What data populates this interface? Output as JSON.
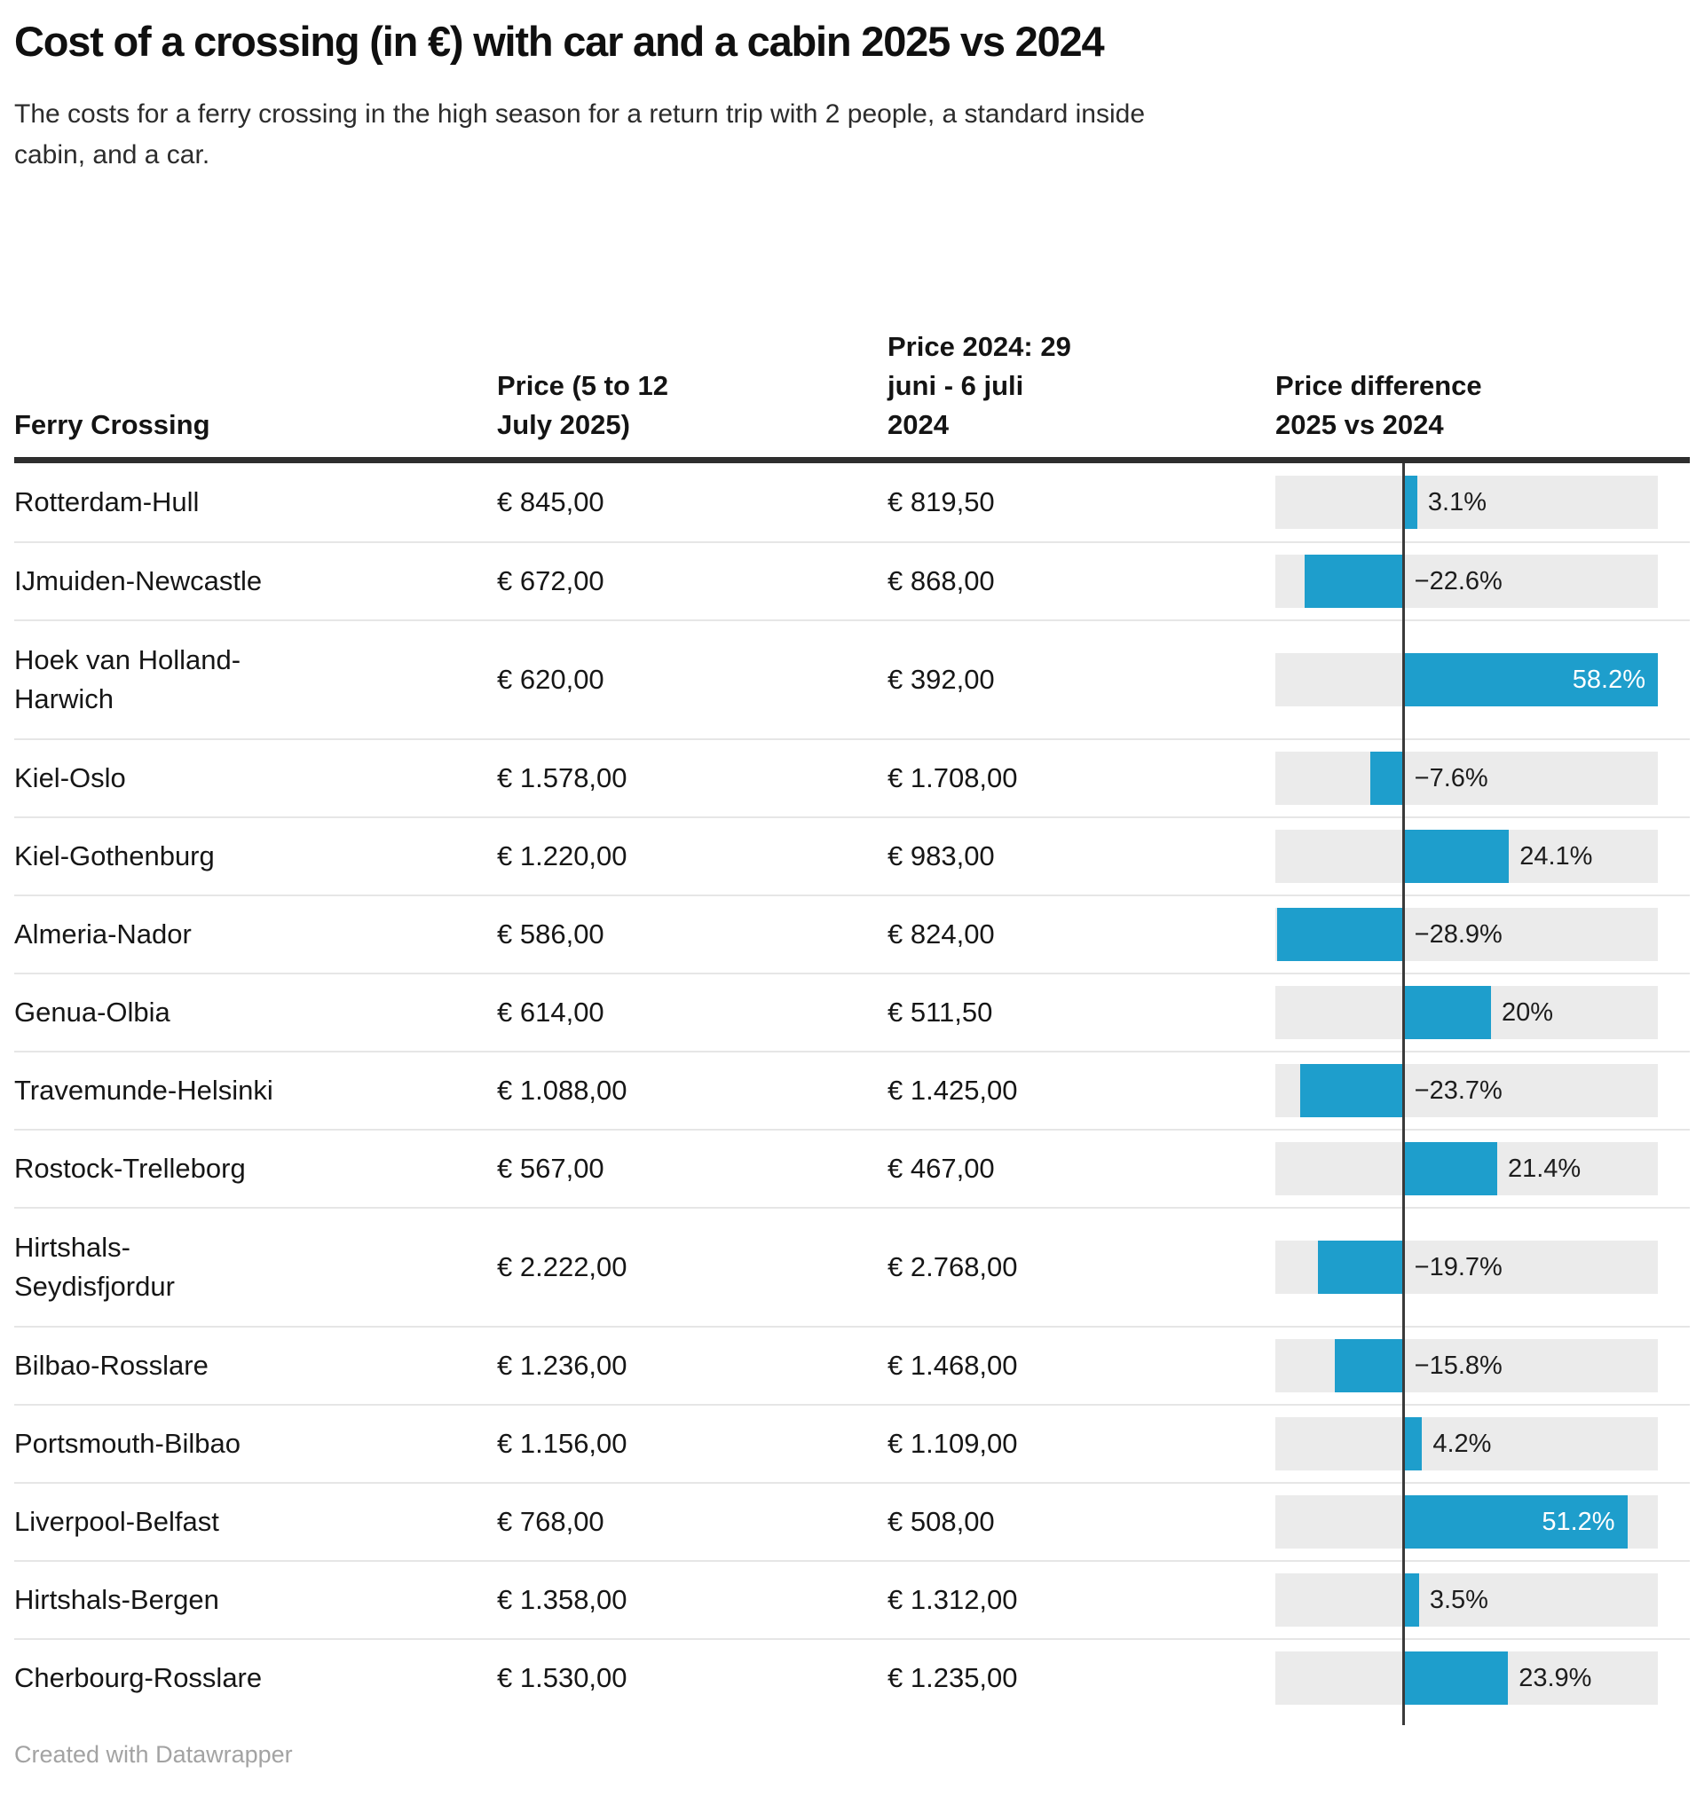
{
  "title": "Cost of a crossing (in €) with car and a cabin 2025 vs 2024",
  "subtitle": "The costs for a ferry crossing in the high season for a return trip with 2 people, a standard inside cabin, and a car.",
  "subtitle_lines": [
    "The costs for a ferry crossing in the high season for a return trip with 2 people, a standard inside",
    "cabin, and a car."
  ],
  "attribution": "Created with Datawrapper",
  "colors": {
    "bar": "#1e9ecc",
    "bar_label_inside": "#ffffff",
    "track": "#ebebeb",
    "zero_line": "#3a3a3a",
    "header_rule": "#2e2e2e",
    "row_divider": "#e6e6e6",
    "text": "#161616",
    "attribution_text": "#a3a3a3"
  },
  "chart_data": {
    "type": "table",
    "title": "Cost of a crossing (in €) with car and a cabin 2025 vs 2024",
    "subtitle": "The costs for a ferry crossing in the high season for a return trip with 2 people, a standard inside cabin, and a car.",
    "legend_position": "none",
    "grid": false,
    "bar_axis": {
      "min": -29.4,
      "max": 58.2,
      "zero": 0,
      "unit": "%"
    },
    "columns": [
      {
        "id": "crossing",
        "label": "Ferry Crossing",
        "lines": [
          "Ferry Crossing"
        ]
      },
      {
        "id": "price_2025",
        "label": "Price (5 to 12 July 2025)",
        "lines": [
          "Price (5 to 12",
          "July 2025)"
        ]
      },
      {
        "id": "price_2024",
        "label": "Price 2024: 29 juni - 6 juli 2024",
        "lines": [
          "Price 2024: 29",
          "juni - 6 juli",
          "2024"
        ]
      },
      {
        "id": "diff",
        "label": "Price difference 2025 vs 2024",
        "lines": [
          "Price difference",
          "2025 vs 2024"
        ]
      }
    ],
    "rows": [
      {
        "crossing": "Rotterdam-Hull",
        "crossing_lines": [
          "Rotterdam-Hull"
        ],
        "price_2025": "€ 845,00",
        "price_2024": "€ 819,50",
        "diff_value": 3.1,
        "diff_label": "3.1%"
      },
      {
        "crossing": "IJmuiden-Newcastle",
        "crossing_lines": [
          "IJmuiden-Newcastle"
        ],
        "price_2025": "€ 672,00",
        "price_2024": "€ 868,00",
        "diff_value": -22.6,
        "diff_label": "−22.6%"
      },
      {
        "crossing": "Hoek van Holland-Harwich",
        "crossing_lines": [
          "Hoek van Holland-",
          "Harwich"
        ],
        "price_2025": "€ 620,00",
        "price_2024": "€ 392,00",
        "diff_value": 58.2,
        "diff_label": "58.2%"
      },
      {
        "crossing": "Kiel-Oslo",
        "crossing_lines": [
          "Kiel-Oslo"
        ],
        "price_2025": "€ 1.578,00",
        "price_2024": "€ 1.708,00",
        "diff_value": -7.6,
        "diff_label": "−7.6%"
      },
      {
        "crossing": "Kiel-Gothenburg",
        "crossing_lines": [
          "Kiel-Gothenburg"
        ],
        "price_2025": "€ 1.220,00",
        "price_2024": "€ 983,00",
        "diff_value": 24.1,
        "diff_label": "24.1%"
      },
      {
        "crossing": "Almeria-Nador",
        "crossing_lines": [
          "Almeria-Nador"
        ],
        "price_2025": "€ 586,00",
        "price_2024": "€ 824,00",
        "diff_value": -28.9,
        "diff_label": "−28.9%"
      },
      {
        "crossing": "Genua-Olbia",
        "crossing_lines": [
          "Genua-Olbia"
        ],
        "price_2025": "€ 614,00",
        "price_2024": "€ 511,50",
        "diff_value": 20,
        "diff_label": "20%"
      },
      {
        "crossing": "Travemunde-Helsinki",
        "crossing_lines": [
          "Travemunde-Helsinki"
        ],
        "price_2025": "€ 1.088,00",
        "price_2024": "€ 1.425,00",
        "diff_value": -23.7,
        "diff_label": "−23.7%"
      },
      {
        "crossing": "Rostock-Trelleborg",
        "crossing_lines": [
          "Rostock-Trelleborg"
        ],
        "price_2025": "€ 567,00",
        "price_2024": "€ 467,00",
        "diff_value": 21.4,
        "diff_label": "21.4%"
      },
      {
        "crossing": "Hirtshals-Seydisfjordur",
        "crossing_lines": [
          "Hirtshals-",
          "Seydisfjordur"
        ],
        "price_2025": "€ 2.222,00",
        "price_2024": "€ 2.768,00",
        "diff_value": -19.7,
        "diff_label": "−19.7%"
      },
      {
        "crossing": "Bilbao-Rosslare",
        "crossing_lines": [
          "Bilbao-Rosslare"
        ],
        "price_2025": "€ 1.236,00",
        "price_2024": "€ 1.468,00",
        "diff_value": -15.8,
        "diff_label": "−15.8%"
      },
      {
        "crossing": "Portsmouth-Bilbao",
        "crossing_lines": [
          "Portsmouth-Bilbao"
        ],
        "price_2025": "€ 1.156,00",
        "price_2024": "€ 1.109,00",
        "diff_value": 4.2,
        "diff_label": "4.2%"
      },
      {
        "crossing": "Liverpool-Belfast",
        "crossing_lines": [
          "Liverpool-Belfast"
        ],
        "price_2025": "€ 768,00",
        "price_2024": "€ 508,00",
        "diff_value": 51.2,
        "diff_label": "51.2%"
      },
      {
        "crossing": "Hirtshals-Bergen",
        "crossing_lines": [
          "Hirtshals-Bergen"
        ],
        "price_2025": "€ 1.358,00",
        "price_2024": "€ 1.312,00",
        "diff_value": 3.5,
        "diff_label": "3.5%"
      },
      {
        "crossing": "Cherbourg-Rosslare",
        "crossing_lines": [
          "Cherbourg-Rosslare"
        ],
        "price_2025": "€ 1.530,00",
        "price_2024": "€ 1.235,00",
        "diff_value": 23.9,
        "diff_label": "23.9%"
      }
    ]
  }
}
